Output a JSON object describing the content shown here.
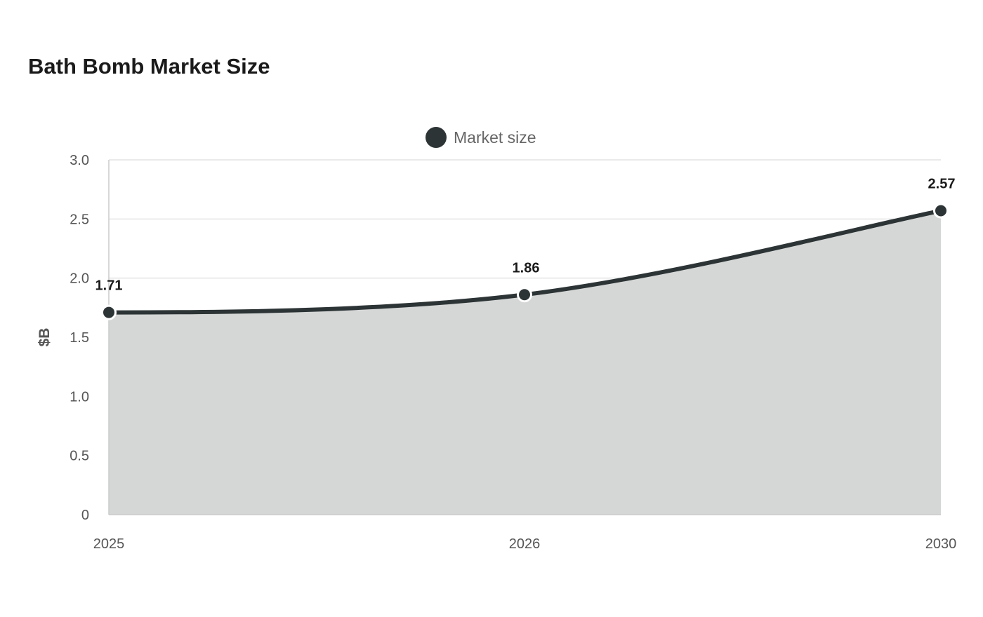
{
  "chart_data": {
    "type": "area",
    "title": "Bath Bomb Market Size",
    "xlabel": "",
    "ylabel": "$B",
    "categories": [
      "2025",
      "2026",
      "2030"
    ],
    "series": [
      {
        "name": "Market size",
        "values": [
          1.71,
          1.86,
          2.57
        ],
        "labels": [
          "1.71",
          "1.86",
          "2.57"
        ]
      }
    ],
    "ylim": [
      0,
      3.0
    ],
    "yticks": [
      0,
      0.5,
      1.0,
      1.5,
      2.0,
      2.5,
      3.0
    ],
    "ytick_labels": [
      "0",
      "0.5",
      "1.0",
      "1.5",
      "2.0",
      "2.5",
      "3.0"
    ],
    "grid": true,
    "legend_position": "top-center",
    "colors": {
      "line": "#2d3436",
      "area": "#d5d7d6",
      "grid": "#e4e4e4",
      "axis": "#cccccc",
      "marker_stroke": "#ffffff"
    }
  }
}
